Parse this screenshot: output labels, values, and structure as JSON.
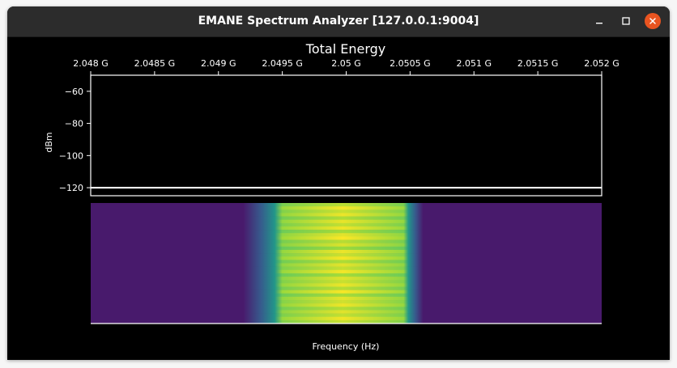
{
  "window": {
    "title": "EMANE Spectrum Analyzer [127.0.0.1:9004]",
    "controls": {
      "minimize_icon": "minimize-icon",
      "maximize_icon": "maximize-icon",
      "close_icon": "close-icon",
      "close_color": "#e95420"
    }
  },
  "plot": {
    "title": "Total Energy",
    "ylabel": "dBm",
    "xlabel": "Frequency (Hz)",
    "background": "#000000",
    "foreground": "#ffffff",
    "x_tick_labels": [
      "2.048 G",
      "2.0485 G",
      "2.049 G",
      "2.0495 G",
      "2.05 G",
      "2.0505 G",
      "2.051 G",
      "2.0515 G",
      "2.052 G"
    ],
    "y_tick_labels": [
      "−60",
      "−80",
      "−100",
      "−120"
    ]
  },
  "chart_data": [
    {
      "type": "line",
      "title": "Total Energy",
      "xlabel": "",
      "ylabel": "dBm",
      "xlim": [
        2048000000,
        2052000000
      ],
      "ylim": [
        -125,
        -50
      ],
      "x_ticks": [
        2048000000,
        2048500000,
        2049000000,
        2049500000,
        2050000000,
        2050500000,
        2051000000,
        2051500000,
        2052000000
      ],
      "y_ticks": [
        -60,
        -80,
        -100,
        -120
      ],
      "grid": false,
      "series": [
        {
          "x": [
            2048000000,
            2052000000
          ],
          "y": [
            -120,
            -120
          ],
          "color": "#ffffff"
        }
      ]
    },
    {
      "type": "heatmap",
      "title": "",
      "xlabel": "Frequency (Hz)",
      "xlim": [
        2048000000,
        2052000000
      ],
      "colormap": "viridis",
      "background_color": "#481a6c",
      "signal_band_hz": [
        2049200000,
        2050600000
      ],
      "core_band_hz": [
        2049500000,
        2050450000
      ],
      "row_count": 36,
      "row_intensity": [
        0.62,
        0.95,
        0.7,
        0.9,
        0.55,
        0.88,
        0.66,
        0.92,
        0.5,
        0.85,
        0.98,
        0.6,
        0.8,
        0.45,
        0.9,
        0.72,
        0.96,
        0.55,
        0.85,
        0.68,
        0.94,
        0.5,
        0.82,
        0.7,
        0.9,
        0.6,
        0.97,
        0.52,
        0.86,
        0.74,
        0.91,
        0.58,
        0.84,
        0.66,
        0.93,
        0.7
      ]
    }
  ]
}
